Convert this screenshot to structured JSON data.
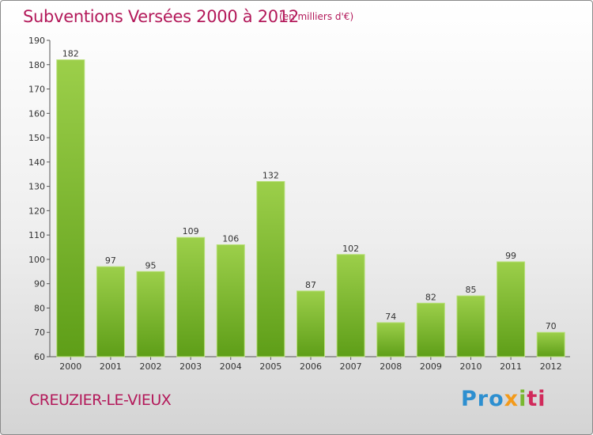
{
  "header": {
    "title": "Subventions Versées 2000 à 2012",
    "subtitle": "(en milliers d'€)"
  },
  "footer": {
    "city": "CREUZIER-LE-VIEUX",
    "logo_text": [
      "Pro",
      "x",
      "i",
      "ti"
    ]
  },
  "colors": {
    "accent": "#b3195a",
    "bar_top": "#9ccf4a",
    "bar_bottom": "#5e9e18"
  },
  "chart_data": {
    "type": "bar",
    "title": "Subventions Versées 2000 à 2012",
    "subtitle": "(en milliers d'€)",
    "categories": [
      "2000",
      "2001",
      "2002",
      "2003",
      "2004",
      "2005",
      "2006",
      "2007",
      "2008",
      "2009",
      "2010",
      "2011",
      "2012"
    ],
    "values": [
      182,
      97,
      95,
      109,
      106,
      132,
      87,
      102,
      74,
      82,
      85,
      99,
      70
    ],
    "ylim": [
      60,
      190
    ],
    "yticks": [
      60,
      70,
      80,
      90,
      100,
      110,
      120,
      130,
      140,
      150,
      160,
      170,
      180,
      190
    ],
    "grid": false,
    "legend": "none"
  }
}
